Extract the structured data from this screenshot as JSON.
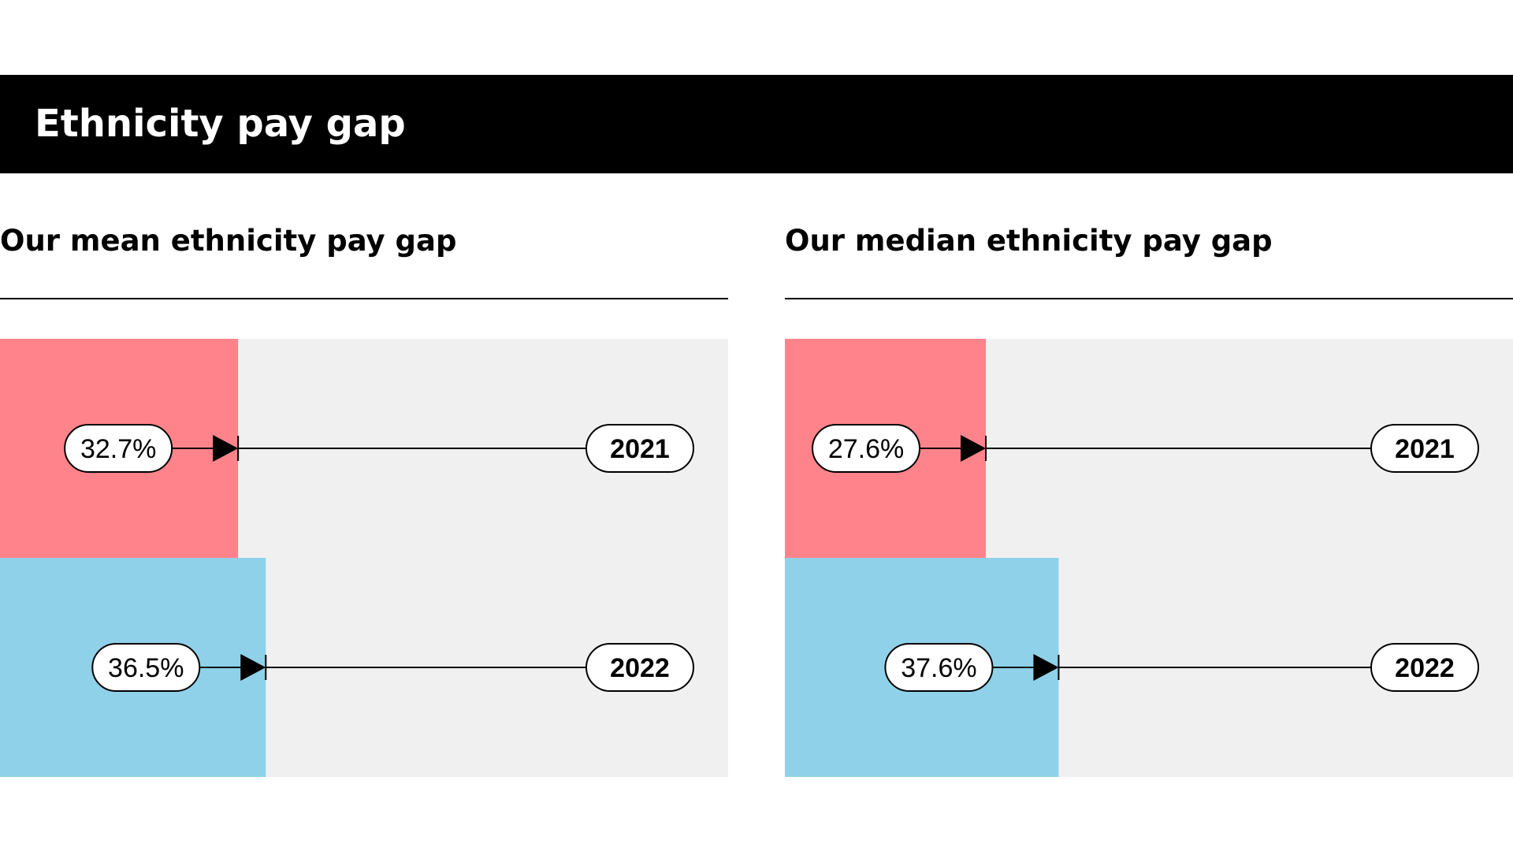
{
  "header": {
    "title": "Ethnicity pay gap"
  },
  "colors": {
    "2021": "#ff838b",
    "2022": "#8fd1e8",
    "track": "#f0f0f0"
  },
  "chart_data": [
    {
      "type": "bar",
      "title": "Our mean ethnicity pay gap",
      "categories": [
        "2021",
        "2022"
      ],
      "values": [
        32.7,
        36.5
      ],
      "value_labels": [
        "32.7%",
        "36.5%"
      ],
      "unit": "%",
      "xlim": [
        0,
        100
      ]
    },
    {
      "type": "bar",
      "title": "Our median ethnicity pay gap",
      "categories": [
        "2021",
        "2022"
      ],
      "values": [
        27.6,
        37.6
      ],
      "value_labels": [
        "27.6%",
        "37.6%"
      ],
      "unit": "%",
      "xlim": [
        0,
        100
      ]
    }
  ]
}
